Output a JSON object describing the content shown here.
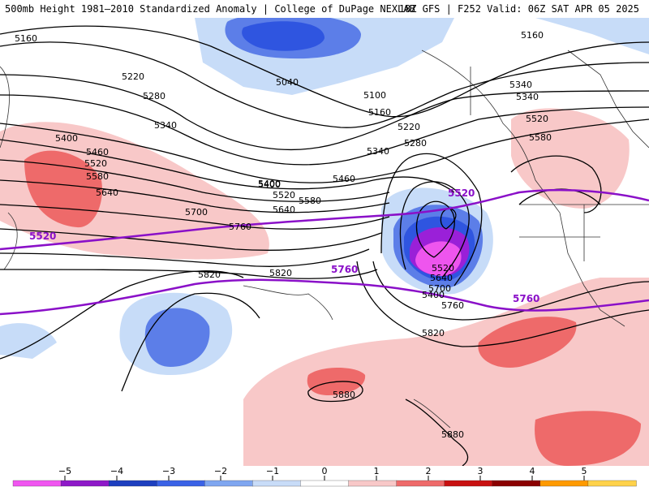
{
  "header": {
    "left": "500mb Height 1981–2010 Standardized Anomaly | College of DuPage NEXLAB",
    "right": "18Z GFS | F252 Valid: 06Z SAT APR 05 2025"
  },
  "map": {
    "contour_labels": [
      "5160",
      "5160",
      "5040",
      "5100",
      "5160",
      "5220",
      "5220",
      "5280",
      "5340",
      "5280",
      "5340",
      "5400",
      "5400",
      "5460",
      "5520",
      "5580",
      "5640",
      "5700",
      "5760",
      "5820",
      "5460",
      "5400",
      "5520",
      "5580",
      "5640",
      "5700",
      "5400",
      "5520",
      "5640",
      "5700",
      "5760",
      "5820",
      "5880",
      "5880",
      "5820",
      "5520",
      "5580"
    ],
    "purple_labels": [
      "5520",
      "5520",
      "5760",
      "5760"
    ],
    "colors": {
      "contour": "#000000",
      "climo_line": "#8a10c8",
      "pos_anom_light": "#f8c8c8",
      "pos_anom_mid": "#ee6a6a",
      "neg_anom_light": "#c7dcf8",
      "neg_anom_mid": "#5c7ee8",
      "neg_anom_strong": "#2f55e0",
      "low_core": "#9a20d8",
      "low_center": "#ee55ee"
    }
  },
  "legend": {
    "ticks": [
      "−5",
      "−4",
      "−3",
      "−2",
      "−1",
      "0",
      "1",
      "2",
      "3",
      "4",
      "5"
    ],
    "colors": [
      "#f055f0",
      "#8e18c8",
      "#1d3fbf",
      "#3a62e6",
      "#7fa6f0",
      "#c8dcf8",
      "#ffffff",
      "#f8c8c8",
      "#ee6a6a",
      "#c81010",
      "#8a0000",
      "#ff9a00",
      "#ffd24a"
    ]
  }
}
